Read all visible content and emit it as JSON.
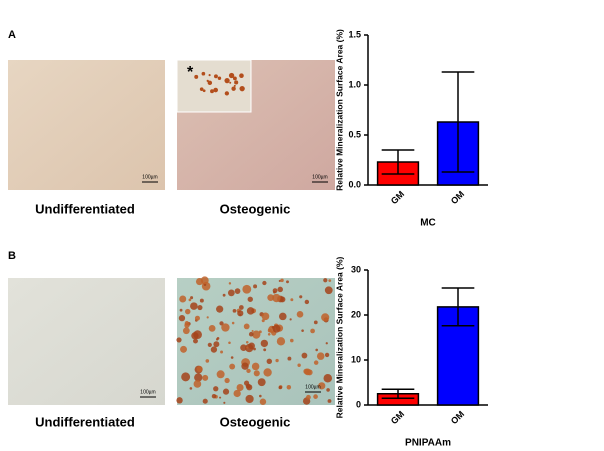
{
  "figure": {
    "panels": [
      "A",
      "B"
    ],
    "image_labels": [
      "Undifferentiated",
      "Osteogenic",
      "Undifferentiated",
      "Osteogenic"
    ],
    "scale_bars": [
      "100µm",
      "100µm",
      "100µm",
      "100µm"
    ],
    "inset_marker": "*"
  },
  "chart_data": [
    {
      "type": "bar",
      "ylabel": "Relative Mineralization Surface Area (%)",
      "xlabel": "MC",
      "categories": [
        "GM",
        "OM"
      ],
      "values": [
        0.23,
        0.63
      ],
      "errors": [
        0.12,
        0.5
      ],
      "colors": [
        "#ff0000",
        "#0000ff"
      ],
      "ylim": [
        0,
        1.5
      ],
      "yticks": [
        {
          "value": 0,
          "label": "0.0"
        },
        {
          "value": 0.5,
          "label": "0.5"
        },
        {
          "value": 1,
          "label": "1.0"
        },
        {
          "value": 1.5,
          "label": "1.5"
        }
      ]
    },
    {
      "type": "bar",
      "ylabel": "Relative Mineralization Surface Area (%)",
      "xlabel": "PNIPAAm",
      "categories": [
        "GM",
        "OM"
      ],
      "values": [
        2.5,
        21.8
      ],
      "errors": [
        1.0,
        4.2
      ],
      "colors": [
        "#ff0000",
        "#0000ff"
      ],
      "ylim": [
        0,
        30
      ],
      "yticks": [
        0,
        10,
        20,
        30
      ]
    }
  ]
}
